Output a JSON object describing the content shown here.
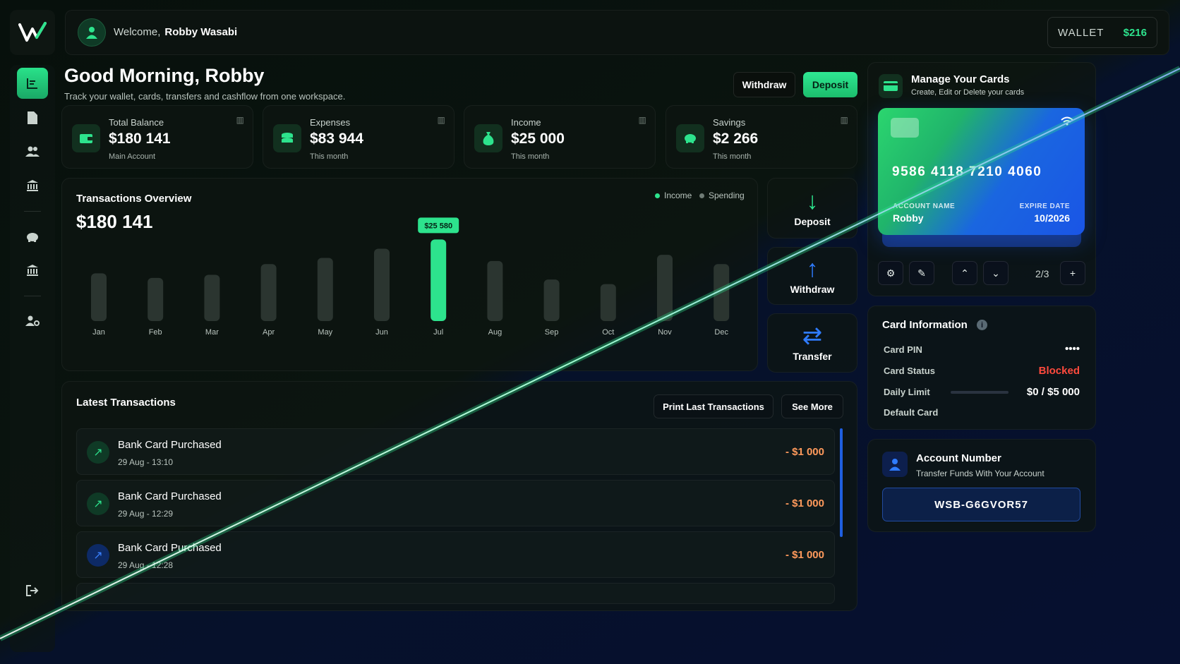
{
  "header": {
    "welcome_prefix": "Welcome,",
    "user_name": "Robby Wasabi",
    "wallet_label": "WALLET",
    "wallet_amount": "$216"
  },
  "page": {
    "greeting": "Good Morning, Robby",
    "subtitle": "Track your wallet, cards, transfers and cashflow from one workspace.",
    "withdraw_label": "Withdraw",
    "deposit_label": "Deposit"
  },
  "stats": [
    {
      "title": "Total Balance",
      "value": "$180 141",
      "sub": "Main Account",
      "icon": "wallet-icon"
    },
    {
      "title": "Expenses",
      "value": "$83 944",
      "sub": "This month",
      "icon": "coins-icon"
    },
    {
      "title": "Income",
      "value": "$25 000",
      "sub": "This month",
      "icon": "money-bag-icon"
    },
    {
      "title": "Savings",
      "value": "$2 266",
      "sub": "This month",
      "icon": "piggy-bank-icon"
    }
  ],
  "overview": {
    "title": "Transactions Overview",
    "total": "$180 141",
    "legend_income": "Income",
    "legend_spending": "Spending",
    "highlight_label": "$25 580",
    "income_color": "#2de38d",
    "spending_color": "#6f7b75"
  },
  "chart_data": {
    "type": "bar",
    "categories": [
      "Jan",
      "Feb",
      "Mar",
      "Apr",
      "May",
      "Jun",
      "Jul",
      "Aug",
      "Sep",
      "Oct",
      "Nov",
      "Dec"
    ],
    "values": [
      62,
      56,
      60,
      74,
      82,
      94,
      106,
      78,
      54,
      48,
      86,
      74
    ],
    "highlight_index": 6,
    "highlight_value": "$25 580"
  },
  "quick_actions": {
    "deposit": "Deposit",
    "withdraw": "Withdraw",
    "transfer": "Transfer"
  },
  "latest": {
    "title": "Latest Transactions",
    "print_label": "Print Last Transactions",
    "see_more_label": "See More",
    "rows": [
      {
        "name": "Bank Card Purchased",
        "time": "29 Aug - 13:10",
        "amount": "- $1 000"
      },
      {
        "name": "Bank Card Purchased",
        "time": "29 Aug - 12:29",
        "amount": "- $1 000"
      },
      {
        "name": "Bank Card Purchased",
        "time": "29 Aug - 12:28",
        "amount": "- $1 000"
      }
    ]
  },
  "cards": {
    "title": "Manage Your Cards",
    "subtitle": "Create, Edit or Delete your cards",
    "number": "9586 4118 7210 4060",
    "account_name_label": "ACCOUNT NAME",
    "account_name": "Robby",
    "expire_label": "EXPIRE DATE",
    "expire": "10/2026",
    "pager": "2/3"
  },
  "card_info": {
    "title": "Card Information",
    "pin_label": "Card PIN",
    "pin_value": "••••",
    "status_label": "Card Status",
    "status_value": "Blocked",
    "status_color": "#ff4a3d",
    "limit_label": "Daily Limit",
    "limit_value": "$0 / $5 000",
    "limit_fraction": 0,
    "default_label": "Default Card"
  },
  "account": {
    "title": "Account Number",
    "subtitle": "Transfer Funds With Your Account",
    "number": "WSB-G6GVOR57"
  }
}
